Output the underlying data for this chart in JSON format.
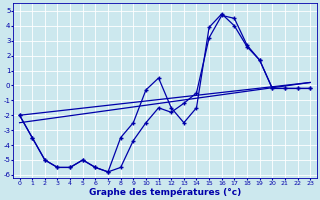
{
  "xlabel": "Graphe des températures (°c)",
  "bg_color": "#cce8ee",
  "line_color": "#0000aa",
  "xlim": [
    -0.5,
    23.5
  ],
  "ylim": [
    -6.2,
    5.5
  ],
  "yticks": [
    -6,
    -5,
    -4,
    -3,
    -2,
    -1,
    0,
    1,
    2,
    3,
    4,
    5
  ],
  "xticks": [
    0,
    1,
    2,
    3,
    4,
    5,
    6,
    7,
    8,
    9,
    10,
    11,
    12,
    13,
    14,
    15,
    16,
    17,
    18,
    19,
    20,
    21,
    22,
    23
  ],
  "line1_x": [
    0,
    1,
    2,
    3,
    4,
    5,
    6,
    7,
    8,
    9,
    10,
    11,
    12,
    13,
    14,
    15,
    16,
    17,
    18,
    19,
    20,
    21,
    22,
    23
  ],
  "line1_y": [
    -2.0,
    -3.5,
    -5.0,
    -5.5,
    -5.5,
    -5.0,
    -5.5,
    -5.8,
    -3.5,
    -2.5,
    -0.3,
    0.5,
    -1.5,
    -2.5,
    -1.5,
    3.9,
    4.8,
    4.0,
    2.6,
    1.7,
    -0.2,
    -0.2,
    -0.2,
    -0.2
  ],
  "line2_x": [
    0,
    1,
    2,
    3,
    4,
    5,
    6,
    7,
    8,
    9,
    10,
    11,
    12,
    13,
    14,
    15,
    16,
    17,
    18,
    19,
    20,
    21,
    22,
    23
  ],
  "line2_y": [
    -2.0,
    -3.5,
    -5.0,
    -5.5,
    -5.5,
    -5.0,
    -5.5,
    -5.8,
    -5.5,
    -3.7,
    -2.5,
    -1.5,
    -1.8,
    -1.2,
    -0.5,
    3.2,
    4.7,
    4.5,
    2.7,
    1.7,
    -0.2,
    -0.2,
    -0.2,
    -0.2
  ],
  "line3_x": [
    0,
    23
  ],
  "line3_y": [
    -2.5,
    0.2
  ],
  "line4_x": [
    0,
    23
  ],
  "line4_y": [
    -2.0,
    0.2
  ]
}
